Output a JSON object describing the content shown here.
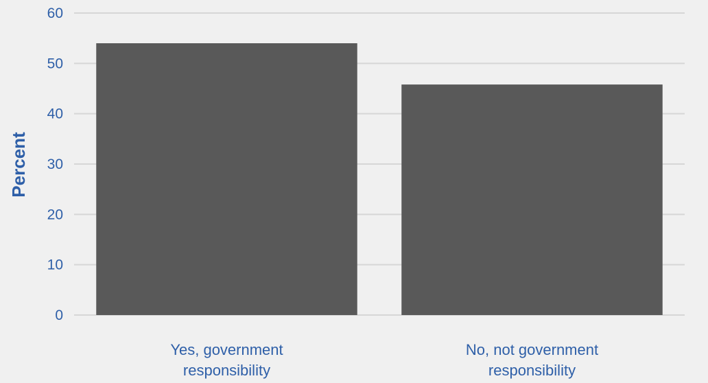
{
  "chart_data": {
    "type": "bar",
    "categories": [
      "Yes, government responsibility",
      "No, not government responsibility"
    ],
    "category_lines": [
      [
        "Yes, government",
        "responsibility"
      ],
      [
        "No, not government",
        "responsibility"
      ]
    ],
    "values": [
      54,
      45.8
    ],
    "title": "",
    "xlabel": "",
    "ylabel": "Percent",
    "ylim": [
      0,
      60
    ],
    "yticks": [
      0,
      10,
      20,
      30,
      40,
      50,
      60
    ],
    "grid": true,
    "legend": "none",
    "colors": {
      "bar": "#595959",
      "background": "#f0f0f0",
      "grid": "#d6d6d6",
      "text": "#2e5fa8"
    }
  }
}
